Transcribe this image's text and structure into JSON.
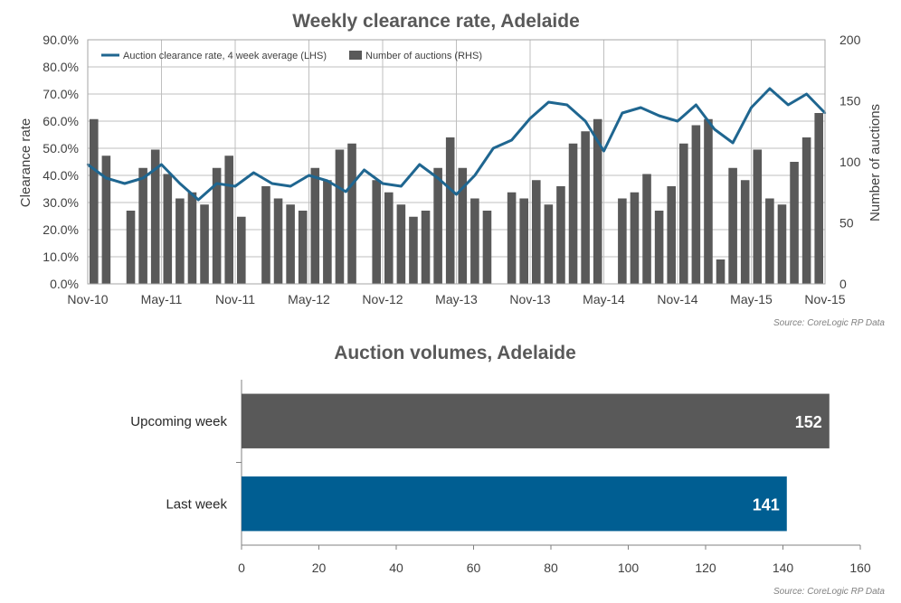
{
  "chart_data": [
    {
      "type": "line",
      "title": "Weekly clearance rate, Adelaide",
      "ylabel": "Clearance rate",
      "y2label": "Number of auctions",
      "ylim": [
        0,
        90
      ],
      "y2lim": [
        0,
        200
      ],
      "yticks": [
        "0.0%",
        "10.0%",
        "20.0%",
        "30.0%",
        "40.0%",
        "50.0%",
        "60.0%",
        "70.0%",
        "80.0%",
        "90.0%"
      ],
      "y2ticks": [
        "0",
        "50",
        "100",
        "150",
        "200"
      ],
      "xticks": [
        "Nov-10",
        "May-11",
        "Nov-11",
        "May-12",
        "Nov-12",
        "May-13",
        "Nov-13",
        "May-14",
        "Nov-14",
        "May-15",
        "Nov-15"
      ],
      "x_start": "Nov-10",
      "x_end": "Nov-15",
      "grid": true,
      "legend_position": "top-left",
      "colors": {
        "line": "#1f6690",
        "bars": "#595959"
      },
      "series": [
        {
          "name": "Auction clearance rate, 4 week average (LHS)",
          "axis": "left",
          "x": [
            0,
            1.5,
            3,
            4.5,
            6,
            7.5,
            9,
            10.5,
            12,
            13.5,
            15,
            16.5,
            18,
            19.5,
            21,
            22.5,
            24,
            25.5,
            27,
            28.5,
            30,
            31.5,
            33,
            34.5,
            36,
            37.5,
            39,
            40.5,
            42,
            43.5,
            45,
            46.5,
            48,
            49.5,
            51,
            52.5,
            54,
            55.5,
            57,
            58.5,
            60
          ],
          "values": [
            44,
            39,
            37,
            39,
            44,
            37,
            31,
            37,
            36,
            41,
            37,
            36,
            40,
            38,
            34,
            42,
            37,
            36,
            44,
            39,
            33,
            40,
            50,
            53,
            61,
            67,
            66,
            60,
            49,
            63,
            65,
            62,
            60,
            66,
            57,
            52,
            65,
            72,
            66,
            70,
            63
          ]
        },
        {
          "name": "Number of auctions (RHS)",
          "axis": "right",
          "type": "bar",
          "x": [
            0.5,
            1.5,
            2.5,
            3.5,
            4.5,
            5.5,
            6.5,
            7.5,
            8.5,
            9.5,
            10.5,
            11.5,
            12.5,
            13.5,
            14.5,
            15.5,
            16.5,
            17.5,
            18.5,
            19.5,
            20.5,
            21.5,
            22.5,
            23.5,
            24.5,
            25.5,
            26.5,
            27.5,
            28.5,
            29.5,
            30.5,
            31.5,
            32.5,
            33.5,
            34.5,
            35.5,
            36.5,
            37.5,
            38.5,
            39.5,
            40.5,
            41.5,
            42.5,
            43.5,
            44.5,
            45.5,
            46.5,
            47.5,
            48.5,
            49.5,
            50.5,
            51.5,
            52.5,
            53.5,
            54.5,
            55.5,
            56.5,
            57.5,
            58.5,
            59.5
          ],
          "values": [
            135,
            105,
            0,
            60,
            95,
            110,
            90,
            70,
            75,
            65,
            95,
            105,
            55,
            0,
            80,
            70,
            65,
            60,
            95,
            85,
            110,
            115,
            0,
            85,
            75,
            65,
            55,
            60,
            95,
            120,
            95,
            70,
            60,
            0,
            75,
            70,
            85,
            65,
            80,
            115,
            125,
            135,
            0,
            70,
            75,
            90,
            60,
            80,
            115,
            130,
            135,
            20,
            95,
            85,
            110,
            70,
            65,
            100,
            120,
            140
          ]
        }
      ]
    },
    {
      "type": "bar",
      "orientation": "horizontal",
      "title": "Auction volumes, Adelaide",
      "categories": [
        "Upcoming week",
        "Last week"
      ],
      "values": [
        152,
        141
      ],
      "value_labels": [
        "152",
        "141"
      ],
      "xlim": [
        0,
        160
      ],
      "xticks": [
        "0",
        "20",
        "40",
        "60",
        "80",
        "100",
        "120",
        "140",
        "160"
      ],
      "colors": [
        "#595959",
        "#005e92"
      ]
    }
  ],
  "source_labels": [
    "Source: CoreLogic RP Data",
    "Source: CoreLogic RP Data"
  ]
}
